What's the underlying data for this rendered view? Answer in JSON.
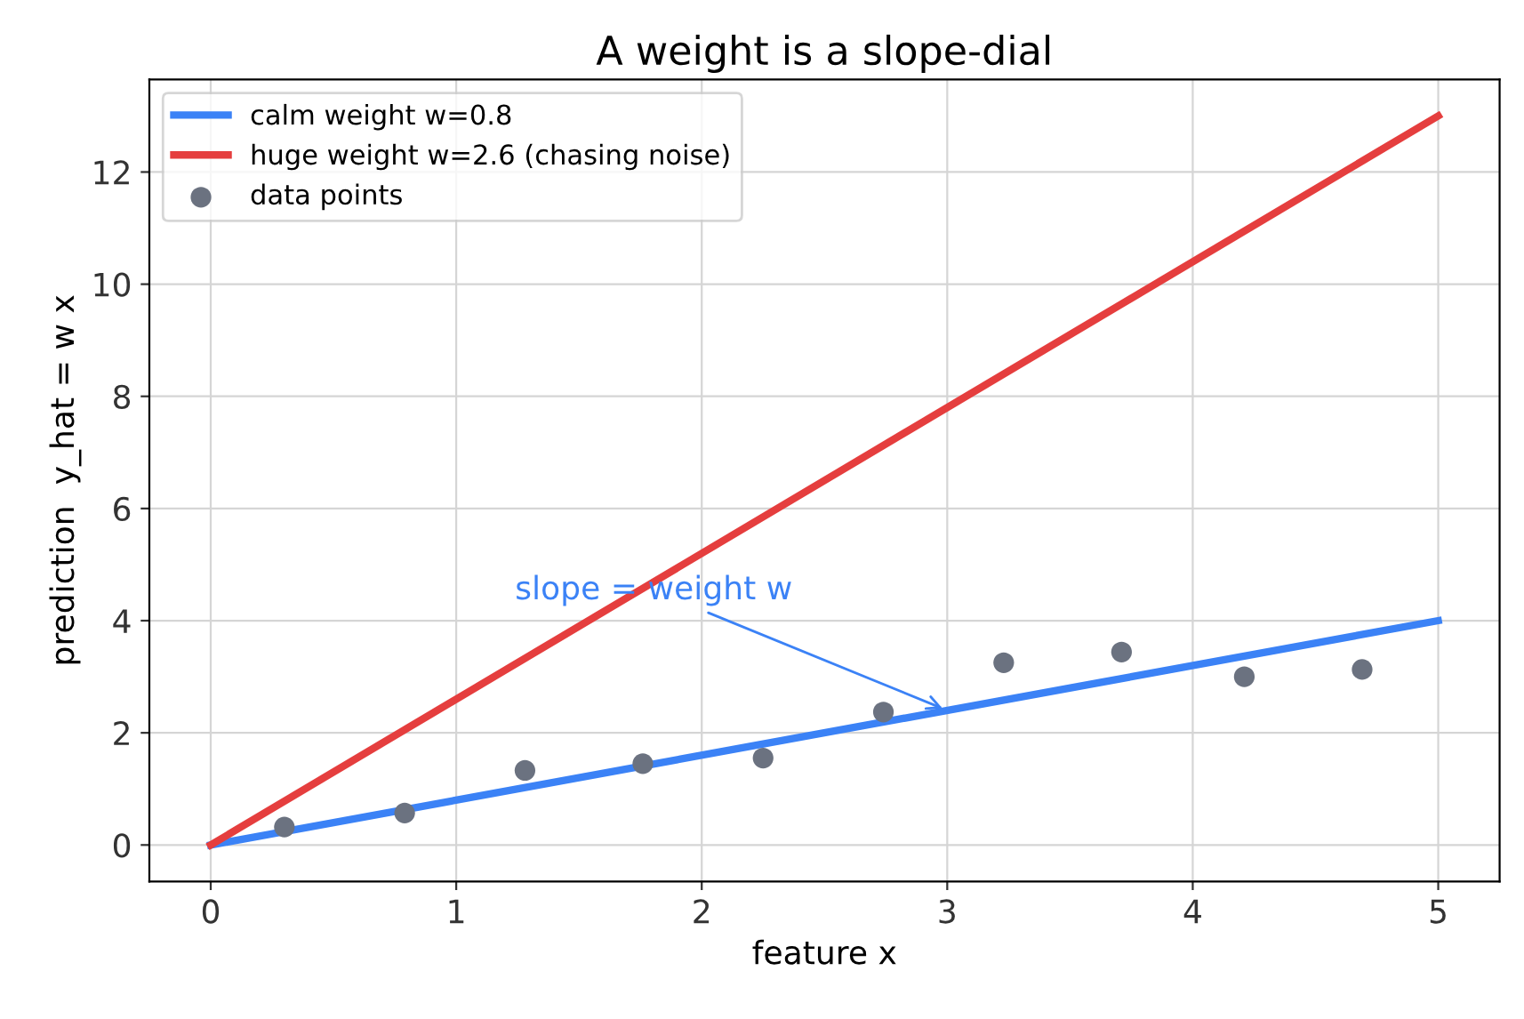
{
  "chart_data": {
    "type": "line",
    "title": "A weight is a slope-dial",
    "xlabel": "feature x",
    "ylabel": "prediction  y_hat = w x",
    "series": [
      {
        "name": "calm weight w=0.8",
        "color": "#3b82f6",
        "x": [
          0,
          5
        ],
        "values": [
          0,
          4
        ]
      },
      {
        "name": "huge weight w=2.6 (chasing noise)",
        "color": "#e53e3e",
        "x": [
          0,
          5
        ],
        "values": [
          0,
          13
        ]
      },
      {
        "name": "data points",
        "color": "#6b7280",
        "type": "scatter",
        "marker": "circle",
        "x": [
          0.3,
          0.79,
          1.28,
          1.76,
          2.25,
          2.74,
          3.23,
          3.71,
          4.21,
          4.69
        ],
        "values": [
          0.32,
          0.57,
          1.33,
          1.45,
          1.55,
          2.37,
          3.25,
          3.44,
          3.0,
          3.13
        ]
      }
    ],
    "annotations": [
      {
        "text": "slope = weight w",
        "x": 3,
        "y": 2.4
      }
    ],
    "xlim": [
      -0.25,
      5.25
    ],
    "ylim": [
      -0.65,
      13.65
    ],
    "xticks": [
      0,
      1,
      2,
      3,
      4,
      5
    ],
    "yticks": [
      0,
      2,
      4,
      6,
      8,
      10,
      12
    ],
    "grid": true,
    "legend": "top left"
  }
}
